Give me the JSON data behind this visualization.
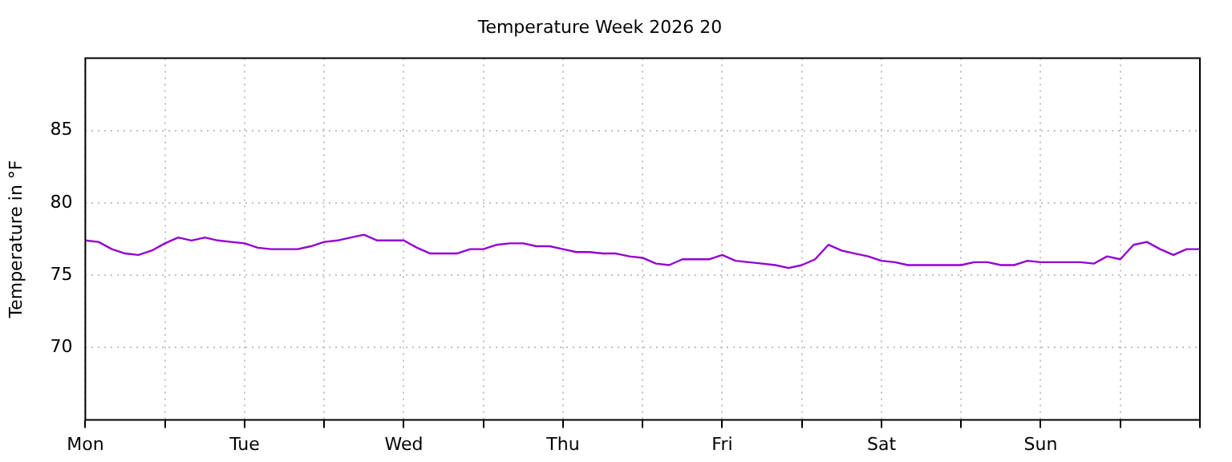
{
  "chart_data": {
    "type": "line",
    "title": "Temperature Week 2026 20",
    "ylabel": "Temperature in °F",
    "categories": [
      "Mon",
      null,
      null,
      null,
      null,
      null,
      null,
      null,
      null,
      null,
      null,
      null,
      "Tue",
      null,
      null,
      null,
      null,
      null,
      null,
      null,
      null,
      null,
      null,
      null,
      "Wed",
      null,
      null,
      null,
      null,
      null,
      null,
      null,
      null,
      null,
      null,
      null,
      "Thu",
      null,
      null,
      null,
      null,
      null,
      null,
      null,
      null,
      null,
      null,
      null,
      "Fri",
      null,
      null,
      null,
      null,
      null,
      null,
      null,
      null,
      null,
      null,
      null,
      "Sat",
      null,
      null,
      null,
      null,
      null,
      null,
      null,
      null,
      null,
      null,
      null,
      "Sun",
      null,
      null,
      null,
      null,
      null,
      null,
      null,
      null,
      null,
      null,
      null,
      null
    ],
    "ylim": [
      65,
      90
    ],
    "yticks": [
      70,
      75,
      80,
      85
    ],
    "grid": true,
    "legend": false,
    "marker": "none",
    "line_style": "solid",
    "series": [
      {
        "color": "#9400d3",
        "values": [
          77.4,
          77.3,
          76.8,
          76.5,
          76.4,
          76.7,
          77.2,
          77.6,
          77.4,
          77.6,
          77.4,
          77.3,
          77.2,
          76.9,
          76.8,
          76.8,
          76.8,
          77.0,
          77.3,
          77.4,
          77.6,
          77.8,
          77.4,
          77.4,
          77.4,
          76.9,
          76.5,
          76.5,
          76.5,
          76.8,
          76.8,
          77.1,
          77.2,
          77.2,
          77.0,
          77.0,
          76.8,
          76.6,
          76.6,
          76.5,
          76.5,
          76.3,
          76.2,
          75.8,
          75.7,
          76.1,
          76.1,
          76.1,
          76.4,
          76.0,
          75.9,
          75.8,
          75.7,
          75.5,
          75.7,
          76.1,
          77.1,
          76.7,
          76.5,
          76.3,
          76.0,
          75.9,
          75.7,
          75.7,
          75.7,
          75.7,
          75.7,
          75.9,
          75.9,
          75.7,
          75.7,
          76.0,
          75.9,
          75.9,
          75.9,
          75.9,
          75.8,
          76.3,
          76.1,
          77.1,
          77.3,
          76.8,
          76.4,
          76.8,
          76.8
        ]
      }
    ]
  }
}
